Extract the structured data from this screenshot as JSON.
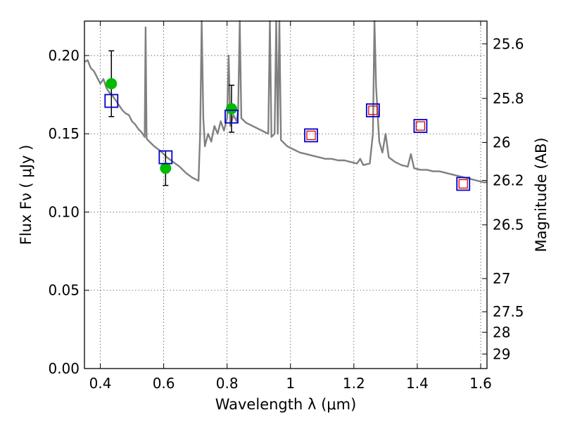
{
  "chart_data": {
    "type": "scatter",
    "xlabel": "Wavelength  λ (μm)",
    "ylabel": "Flux  Fν  ( μJy )",
    "ylabel_right": "Magnitude (AB)",
    "xlim": [
      0.35,
      1.62
    ],
    "ylim": [
      0.0,
      0.222
    ],
    "grid": true,
    "x_ticks": [
      0.4,
      0.6,
      0.8,
      1.0,
      1.2,
      1.4,
      1.6
    ],
    "x_tick_labels": [
      "0.4",
      "0.6",
      "0.8",
      "1",
      "1.2",
      "1.4",
      "1.6"
    ],
    "y_ticks": [
      0.0,
      0.05,
      0.1,
      0.15,
      0.2
    ],
    "y_tick_labels": [
      "0.00",
      "0.05",
      "0.10",
      "0.15",
      "0.20"
    ],
    "right_ticks": [
      {
        "label": "25.6",
        "flux": 0.2075
      },
      {
        "label": "25.8",
        "flux": 0.1726
      },
      {
        "label": "26",
        "flux": 0.1445
      },
      {
        "label": "26.2",
        "flux": 0.1202
      },
      {
        "label": "26.5",
        "flux": 0.0918
      },
      {
        "label": "27",
        "flux": 0.0575
      },
      {
        "label": "27.5",
        "flux": 0.0363
      },
      {
        "label": "28",
        "flux": 0.0232
      },
      {
        "label": "29",
        "flux": 0.0093
      }
    ],
    "model_spectrum": {
      "color": "#808080",
      "points": [
        [
          0.35,
          0.196
        ],
        [
          0.36,
          0.197
        ],
        [
          0.37,
          0.192
        ],
        [
          0.38,
          0.19
        ],
        [
          0.39,
          0.186
        ],
        [
          0.4,
          0.182
        ],
        [
          0.41,
          0.185
        ],
        [
          0.42,
          0.179
        ],
        [
          0.43,
          0.176
        ],
        [
          0.44,
          0.174
        ],
        [
          0.45,
          0.171
        ],
        [
          0.46,
          0.168
        ],
        [
          0.47,
          0.165
        ],
        [
          0.48,
          0.163
        ],
        [
          0.49,
          0.162
        ],
        [
          0.5,
          0.158
        ],
        [
          0.51,
          0.156
        ],
        [
          0.52,
          0.153
        ],
        [
          0.53,
          0.151
        ],
        [
          0.54,
          0.148
        ],
        [
          0.543,
          0.218
        ],
        [
          0.546,
          0.147
        ],
        [
          0.55,
          0.146
        ],
        [
          0.57,
          0.142
        ],
        [
          0.59,
          0.139
        ],
        [
          0.61,
          0.135
        ],
        [
          0.63,
          0.132
        ],
        [
          0.65,
          0.129
        ],
        [
          0.67,
          0.125
        ],
        [
          0.69,
          0.122
        ],
        [
          0.71,
          0.12
        ],
        [
          0.715,
          0.15
        ],
        [
          0.72,
          0.222
        ],
        [
          0.725,
          0.16
        ],
        [
          0.73,
          0.142
        ],
        [
          0.74,
          0.15
        ],
        [
          0.75,
          0.145
        ],
        [
          0.76,
          0.155
        ],
        [
          0.77,
          0.15
        ],
        [
          0.78,
          0.158
        ],
        [
          0.79,
          0.152
        ],
        [
          0.8,
          0.16
        ],
        [
          0.805,
          0.2
        ],
        [
          0.81,
          0.155
        ],
        [
          0.82,
          0.162
        ],
        [
          0.83,
          0.158
        ],
        [
          0.835,
          0.165
        ],
        [
          0.84,
          0.222
        ],
        [
          0.845,
          0.16
        ],
        [
          0.86,
          0.157
        ],
        [
          0.88,
          0.155
        ],
        [
          0.9,
          0.153
        ],
        [
          0.92,
          0.151
        ],
        [
          0.93,
          0.15
        ],
        [
          0.935,
          0.222
        ],
        [
          0.94,
          0.148
        ],
        [
          0.95,
          0.15
        ],
        [
          0.955,
          0.222
        ],
        [
          0.96,
          0.15
        ],
        [
          0.965,
          0.222
        ],
        [
          0.97,
          0.146
        ],
        [
          0.99,
          0.142
        ],
        [
          1.01,
          0.14
        ],
        [
          1.03,
          0.138
        ],
        [
          1.05,
          0.137
        ],
        [
          1.07,
          0.136
        ],
        [
          1.09,
          0.135
        ],
        [
          1.11,
          0.134
        ],
        [
          1.13,
          0.134
        ],
        [
          1.15,
          0.133
        ],
        [
          1.17,
          0.133
        ],
        [
          1.19,
          0.132
        ],
        [
          1.21,
          0.131
        ],
        [
          1.22,
          0.134
        ],
        [
          1.23,
          0.13
        ],
        [
          1.25,
          0.131
        ],
        [
          1.26,
          0.15
        ],
        [
          1.265,
          0.222
        ],
        [
          1.27,
          0.18
        ],
        [
          1.28,
          0.145
        ],
        [
          1.29,
          0.138
        ],
        [
          1.3,
          0.15
        ],
        [
          1.31,
          0.135
        ],
        [
          1.33,
          0.132
        ],
        [
          1.35,
          0.13
        ],
        [
          1.37,
          0.129
        ],
        [
          1.38,
          0.137
        ],
        [
          1.39,
          0.128
        ],
        [
          1.41,
          0.127
        ],
        [
          1.43,
          0.127
        ],
        [
          1.45,
          0.126
        ],
        [
          1.47,
          0.126
        ],
        [
          1.49,
          0.125
        ],
        [
          1.51,
          0.124
        ],
        [
          1.53,
          0.123
        ],
        [
          1.55,
          0.122
        ],
        [
          1.57,
          0.121
        ],
        [
          1.59,
          0.12
        ],
        [
          1.61,
          0.119
        ],
        [
          1.62,
          0.119
        ]
      ]
    },
    "series": [
      {
        "marker": "circle",
        "color": "#00bb00",
        "points": [
          {
            "x": 0.435,
            "y": 0.182,
            "yerr": [
              0.161,
              0.203
            ]
          },
          {
            "x": 0.606,
            "y": 0.128,
            "yerr": [
              0.117,
              0.139
            ]
          },
          {
            "x": 0.814,
            "y": 0.166,
            "yerr": [
              0.151,
              0.181
            ]
          }
        ]
      },
      {
        "marker": "square-blue",
        "color": "#0000cc",
        "points": [
          {
            "x": 0.435,
            "y": 0.171
          },
          {
            "x": 0.606,
            "y": 0.135
          },
          {
            "x": 0.814,
            "y": 0.161
          },
          {
            "x": 1.065,
            "y": 0.149
          },
          {
            "x": 1.26,
            "y": 0.165
          },
          {
            "x": 1.41,
            "y": 0.155
          },
          {
            "x": 1.545,
            "y": 0.118
          }
        ]
      },
      {
        "marker": "square-red",
        "color": "#dd0000",
        "points": [
          {
            "x": 1.065,
            "y": 0.149
          },
          {
            "x": 1.26,
            "y": 0.165
          },
          {
            "x": 1.41,
            "y": 0.155
          },
          {
            "x": 1.545,
            "y": 0.118
          }
        ]
      }
    ]
  }
}
